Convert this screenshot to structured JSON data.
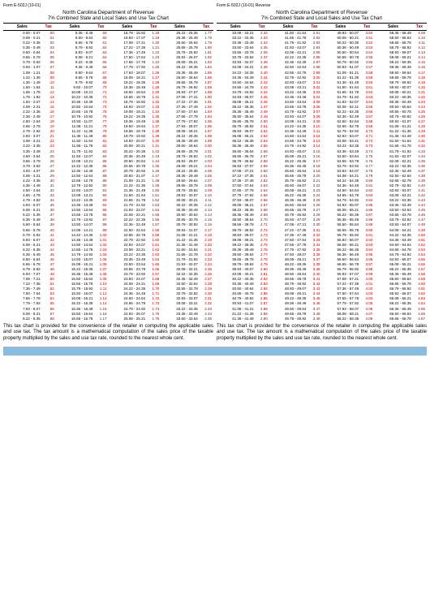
{
  "left": {
    "form_id": "Form E-502J (10-01)",
    "header": "North Carolina Department of Revenue",
    "subheader": "7% Combined State and Local Sales and Use Tax Chart",
    "col_labels": {
      "sales": "Sales",
      "tax": "Tax"
    },
    "footer": "This tax chart is provided for the convenience of the retailer in computing the applicable sales and use tax. The tax amount is a mathematical computation of the sales price of the taxable property multiplied by the sales and use tax rate, rounded to the nearest whole cent."
  },
  "right": {
    "form_id": "Form E-502J (10-01) Reverse",
    "header": "North Carolina Department of Revenue",
    "subheader": "7% Combined State and Local Sales and Use Tax Chart",
    "col_labels": {
      "sales": "Sales",
      "tax": "Tax"
    },
    "footer": "This tax chart is provided for the convenience of the retailer in computing the applicable sales and use tax. The tax amount is a mathematical computation of the sales price of the taxable property multiplied by the sales and use tax rate, rounded to the nearest whole cent."
  },
  "chart": {
    "left_start_low": 0.0,
    "left_start_high": 0.07,
    "left_first_tax": 0,
    "step": 0.14,
    "rows_per_col": 59,
    "right_start_tax": 232
  },
  "colors": {
    "tax": "#b00000",
    "stripe": "#87bde0"
  }
}
